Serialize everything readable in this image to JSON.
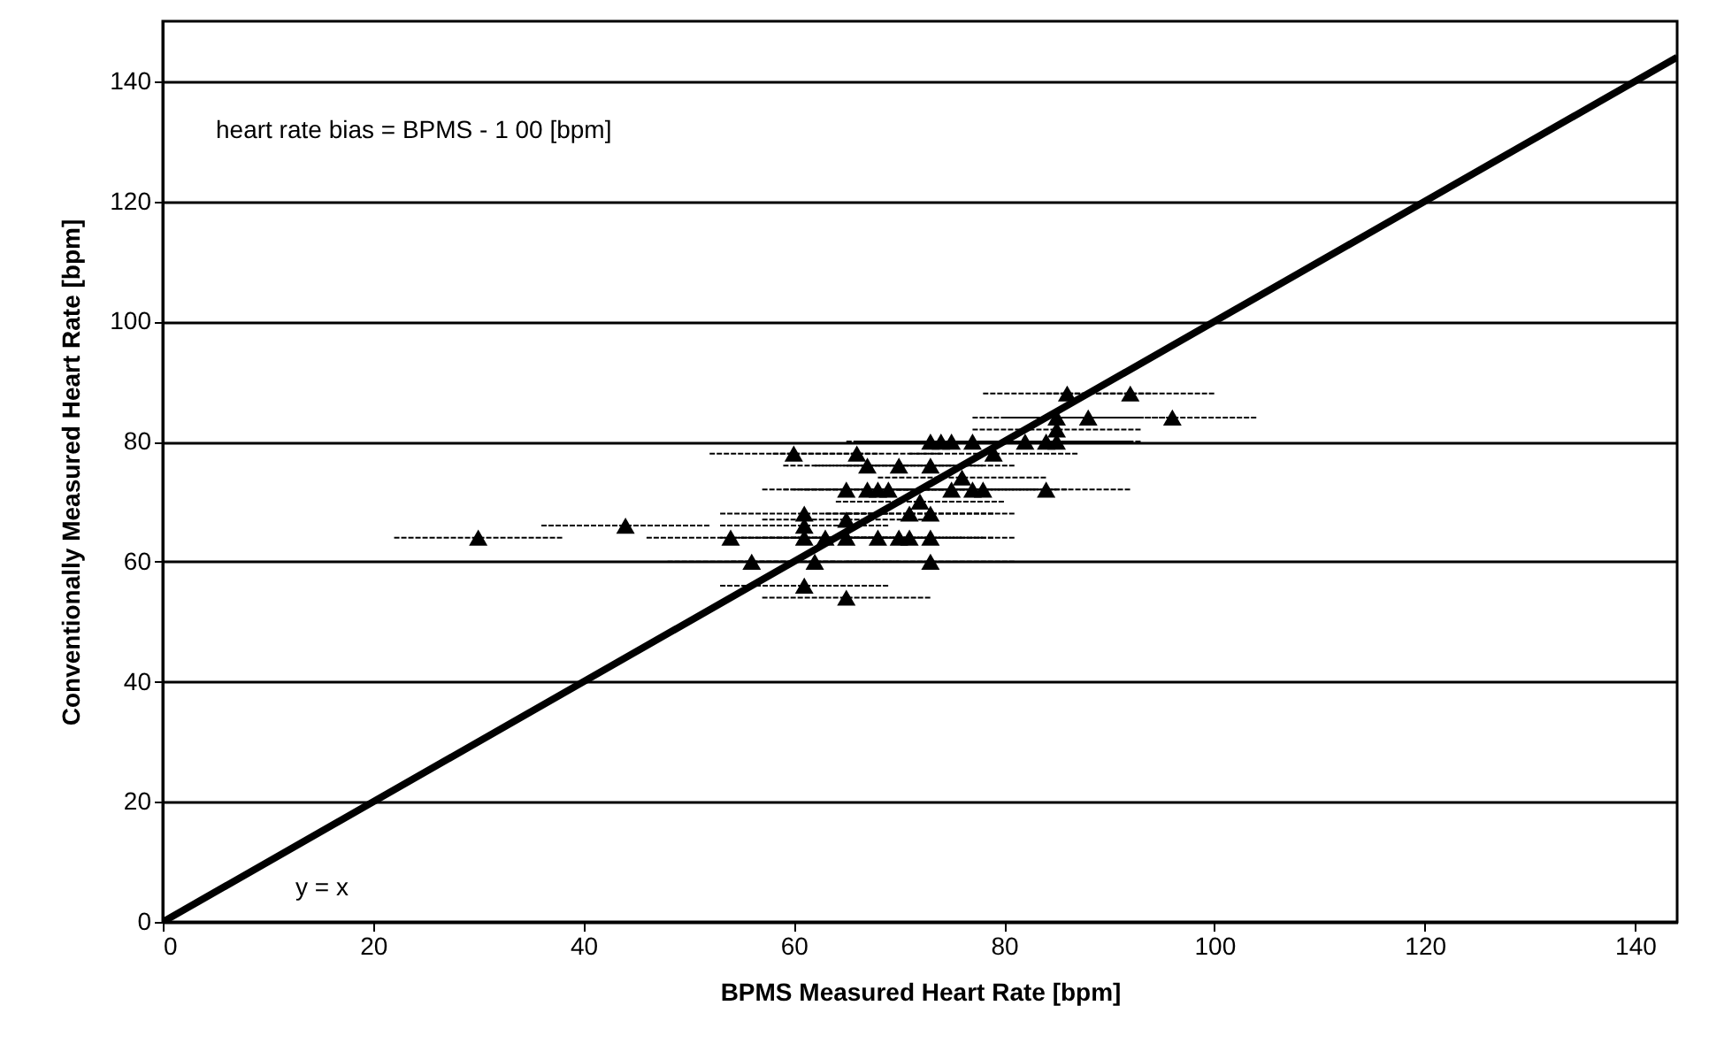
{
  "chart_data": {
    "type": "scatter",
    "xlabel": "BPMS Measured Heart Rate [bpm]",
    "ylabel": "Conventionally Measured Heart Rate [bpm]",
    "annotations": [
      "heart rate bias = BPMS - 1 00 [bpm]",
      "y = x"
    ],
    "xlim": [
      0,
      144
    ],
    "ylim": [
      0,
      150
    ],
    "xticks": [
      0,
      20,
      40,
      60,
      80,
      100,
      120,
      140
    ],
    "yticks": [
      0,
      20,
      40,
      60,
      80,
      100,
      120,
      140
    ],
    "grid": "y",
    "marker": "triangle",
    "series": [
      {
        "type": "line",
        "marker": "none",
        "color": "#000000",
        "x": [
          0,
          144
        ],
        "values": [
          0,
          144
        ]
      },
      {
        "color": "#000000",
        "x": [
          30,
          44,
          54,
          56,
          60,
          61,
          61,
          61,
          61,
          62,
          63,
          65,
          65,
          65,
          65,
          66,
          67,
          67,
          68,
          68,
          69,
          70,
          70,
          71,
          71,
          72,
          73,
          73,
          73,
          73,
          73,
          74,
          75,
          75,
          76,
          77,
          77,
          78,
          79,
          82,
          84,
          84,
          85,
          85,
          85,
          86,
          88,
          92,
          96
        ],
        "values": [
          64,
          66,
          64,
          60,
          78,
          56,
          64,
          66,
          68,
          60,
          64,
          54,
          64,
          67,
          72,
          78,
          72,
          76,
          72,
          64,
          72,
          76,
          64,
          64,
          68,
          70,
          60,
          64,
          68,
          80,
          76,
          80,
          72,
          80,
          74,
          80,
          72,
          72,
          78,
          80,
          80,
          72,
          82,
          80,
          84,
          88,
          84,
          88,
          84
        ],
        "xerrors": [
          8,
          8,
          8,
          8,
          8,
          8,
          8,
          8,
          8,
          8,
          8,
          8,
          8,
          8,
          8,
          8,
          8,
          8,
          8,
          8,
          8,
          8,
          8,
          8,
          8,
          8,
          8,
          8,
          8,
          8,
          8,
          8,
          8,
          8,
          8,
          8,
          8,
          8,
          8,
          8,
          8,
          8,
          8,
          8,
          8,
          8,
          8,
          8,
          8
        ]
      }
    ]
  }
}
